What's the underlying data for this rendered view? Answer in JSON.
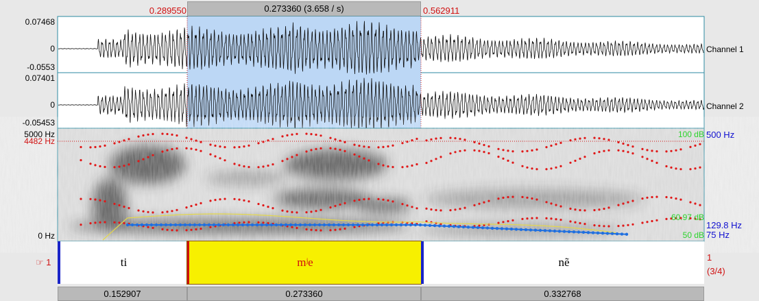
{
  "selection_bar": {
    "start": "0.289550",
    "duration": "0.273360 (3.658 / s)",
    "end": "0.562911"
  },
  "channels": [
    {
      "name": "Channel 1",
      "max": "0.07468",
      "zero": "0",
      "min": "-0.0553"
    },
    {
      "name": "Channel 2",
      "max": "0.07401",
      "zero": "0",
      "min": "-0.05453"
    }
  ],
  "spectrogram": {
    "top": "5000 Hz",
    "cursor": "4482 Hz",
    "bottom": "0 Hz",
    "db_max": "100 dB",
    "pitch_max": "500 Hz",
    "intensity": "60.97 dB",
    "pitch": "129.8 Hz",
    "db_min": "50 dB",
    "pitch_min": "75 Hz"
  },
  "tier": {
    "marker": "☞ 1",
    "number": "1",
    "count": "(3/4)",
    "intervals": [
      {
        "text": "ti",
        "duration": "0.152907"
      },
      {
        "text": "mʲe",
        "duration": "0.273360"
      },
      {
        "text": "nẽ",
        "duration": "0.332768"
      }
    ]
  }
}
